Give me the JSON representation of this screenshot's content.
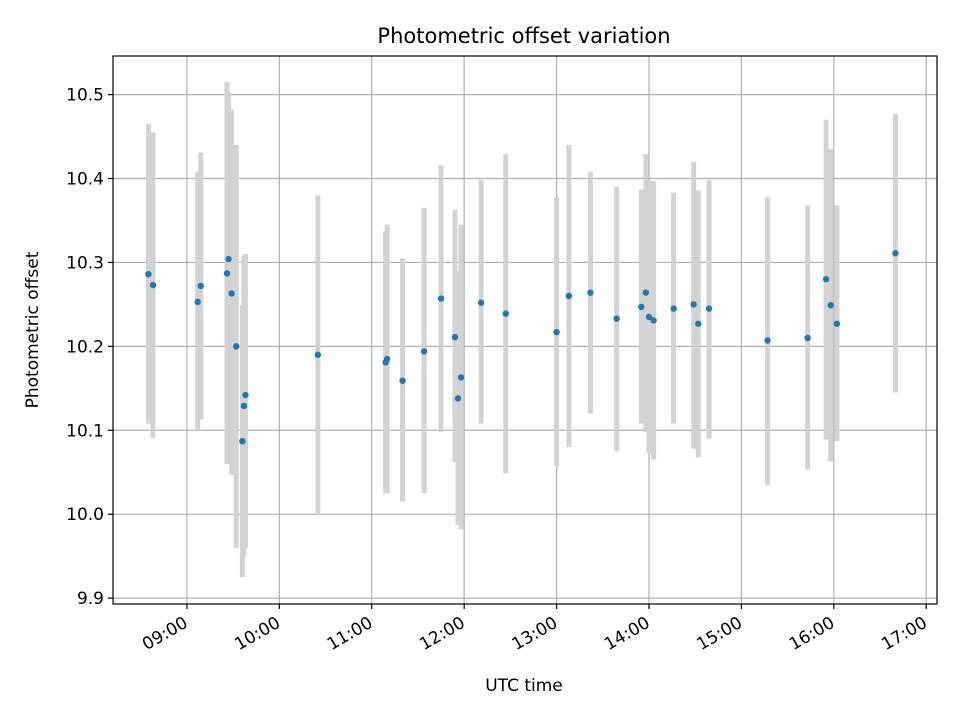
{
  "chart_data": {
    "type": "scatter",
    "title": "Photometric offset variation",
    "xlabel": "UTC time",
    "ylabel": "Photometric offset",
    "x_ticks": [
      "09:00",
      "10:00",
      "11:00",
      "12:00",
      "13:00",
      "14:00",
      "15:00",
      "16:00",
      "17:00"
    ],
    "y_ticks": [
      "9.9",
      "10.0",
      "10.1",
      "10.2",
      "10.3",
      "10.4",
      "10.5"
    ],
    "xlim": [
      "08:12",
      "17:07"
    ],
    "ylim": [
      9.893,
      10.546
    ],
    "grid": true,
    "colors": {
      "point": "#1f77b4",
      "errorbar": "#d3d3d3",
      "grid": "#b0b0b0"
    },
    "series": [
      {
        "points": [
          {
            "x": "08:35",
            "y": 10.286,
            "lo": 10.108,
            "hi": 10.465
          },
          {
            "x": "08:38",
            "y": 10.273,
            "lo": 10.091,
            "hi": 10.455
          },
          {
            "x": "09:07",
            "y": 10.253,
            "lo": 10.1,
            "hi": 10.408
          },
          {
            "x": "09:09",
            "y": 10.272,
            "lo": 10.113,
            "hi": 10.431
          },
          {
            "x": "09:26",
            "y": 10.287,
            "lo": 10.06,
            "hi": 10.515
          },
          {
            "x": "09:27",
            "y": 10.304,
            "lo": 10.105,
            "hi": 10.503
          },
          {
            "x": "09:29",
            "y": 10.263,
            "lo": 10.047,
            "hi": 10.482
          },
          {
            "x": "09:32",
            "y": 10.2,
            "lo": 9.96,
            "hi": 10.44
          },
          {
            "x": "09:36",
            "y": 10.087,
            "lo": 9.925,
            "hi": 10.249
          },
          {
            "x": "09:37",
            "y": 10.129,
            "lo": 9.95,
            "hi": 10.308
          },
          {
            "x": "09:38",
            "y": 10.142,
            "lo": 9.96,
            "hi": 10.31
          },
          {
            "x": "10:25",
            "y": 10.19,
            "lo": 10.0,
            "hi": 10.38
          },
          {
            "x": "11:09",
            "y": 10.181,
            "lo": 10.025,
            "hi": 10.337
          },
          {
            "x": "11:10",
            "y": 10.185,
            "lo": 10.025,
            "hi": 10.345
          },
          {
            "x": "11:20",
            "y": 10.159,
            "lo": 10.015,
            "hi": 10.305
          },
          {
            "x": "11:34",
            "y": 10.194,
            "lo": 10.025,
            "hi": 10.365
          },
          {
            "x": "11:45",
            "y": 10.257,
            "lo": 10.098,
            "hi": 10.416
          },
          {
            "x": "11:54",
            "y": 10.211,
            "lo": 10.062,
            "hi": 10.363
          },
          {
            "x": "11:56",
            "y": 10.138,
            "lo": 9.987,
            "hi": 10.29
          },
          {
            "x": "11:58",
            "y": 10.163,
            "lo": 9.982,
            "hi": 10.345
          },
          {
            "x": "12:11",
            "y": 10.252,
            "lo": 10.108,
            "hi": 10.398
          },
          {
            "x": "12:27",
            "y": 10.239,
            "lo": 10.049,
            "hi": 10.429
          },
          {
            "x": "13:00",
            "y": 10.217,
            "lo": 10.057,
            "hi": 10.378
          },
          {
            "x": "13:08",
            "y": 10.26,
            "lo": 10.08,
            "hi": 10.44
          },
          {
            "x": "13:22",
            "y": 10.264,
            "lo": 10.12,
            "hi": 10.408
          },
          {
            "x": "13:39",
            "y": 10.233,
            "lo": 10.075,
            "hi": 10.39
          },
          {
            "x": "13:55",
            "y": 10.247,
            "lo": 10.108,
            "hi": 10.387
          },
          {
            "x": "13:58",
            "y": 10.264,
            "lo": 10.098,
            "hi": 10.429
          },
          {
            "x": "14:00",
            "y": 10.235,
            "lo": 10.073,
            "hi": 10.397
          },
          {
            "x": "14:03",
            "y": 10.231,
            "lo": 10.065,
            "hi": 10.397
          },
          {
            "x": "14:16",
            "y": 10.245,
            "lo": 10.108,
            "hi": 10.383
          },
          {
            "x": "14:29",
            "y": 10.25,
            "lo": 10.078,
            "hi": 10.42
          },
          {
            "x": "14:32",
            "y": 10.227,
            "lo": 10.068,
            "hi": 10.386
          },
          {
            "x": "14:39",
            "y": 10.245,
            "lo": 10.09,
            "hi": 10.398
          },
          {
            "x": "15:17",
            "y": 10.207,
            "lo": 10.035,
            "hi": 10.378
          },
          {
            "x": "15:43",
            "y": 10.21,
            "lo": 10.053,
            "hi": 10.368
          },
          {
            "x": "15:55",
            "y": 10.28,
            "lo": 10.089,
            "hi": 10.47
          },
          {
            "x": "15:58",
            "y": 10.249,
            "lo": 10.063,
            "hi": 10.435
          },
          {
            "x": "16:02",
            "y": 10.227,
            "lo": 10.087,
            "hi": 10.368
          },
          {
            "x": "16:40",
            "y": 10.311,
            "lo": 10.145,
            "hi": 10.477
          }
        ]
      }
    ]
  }
}
